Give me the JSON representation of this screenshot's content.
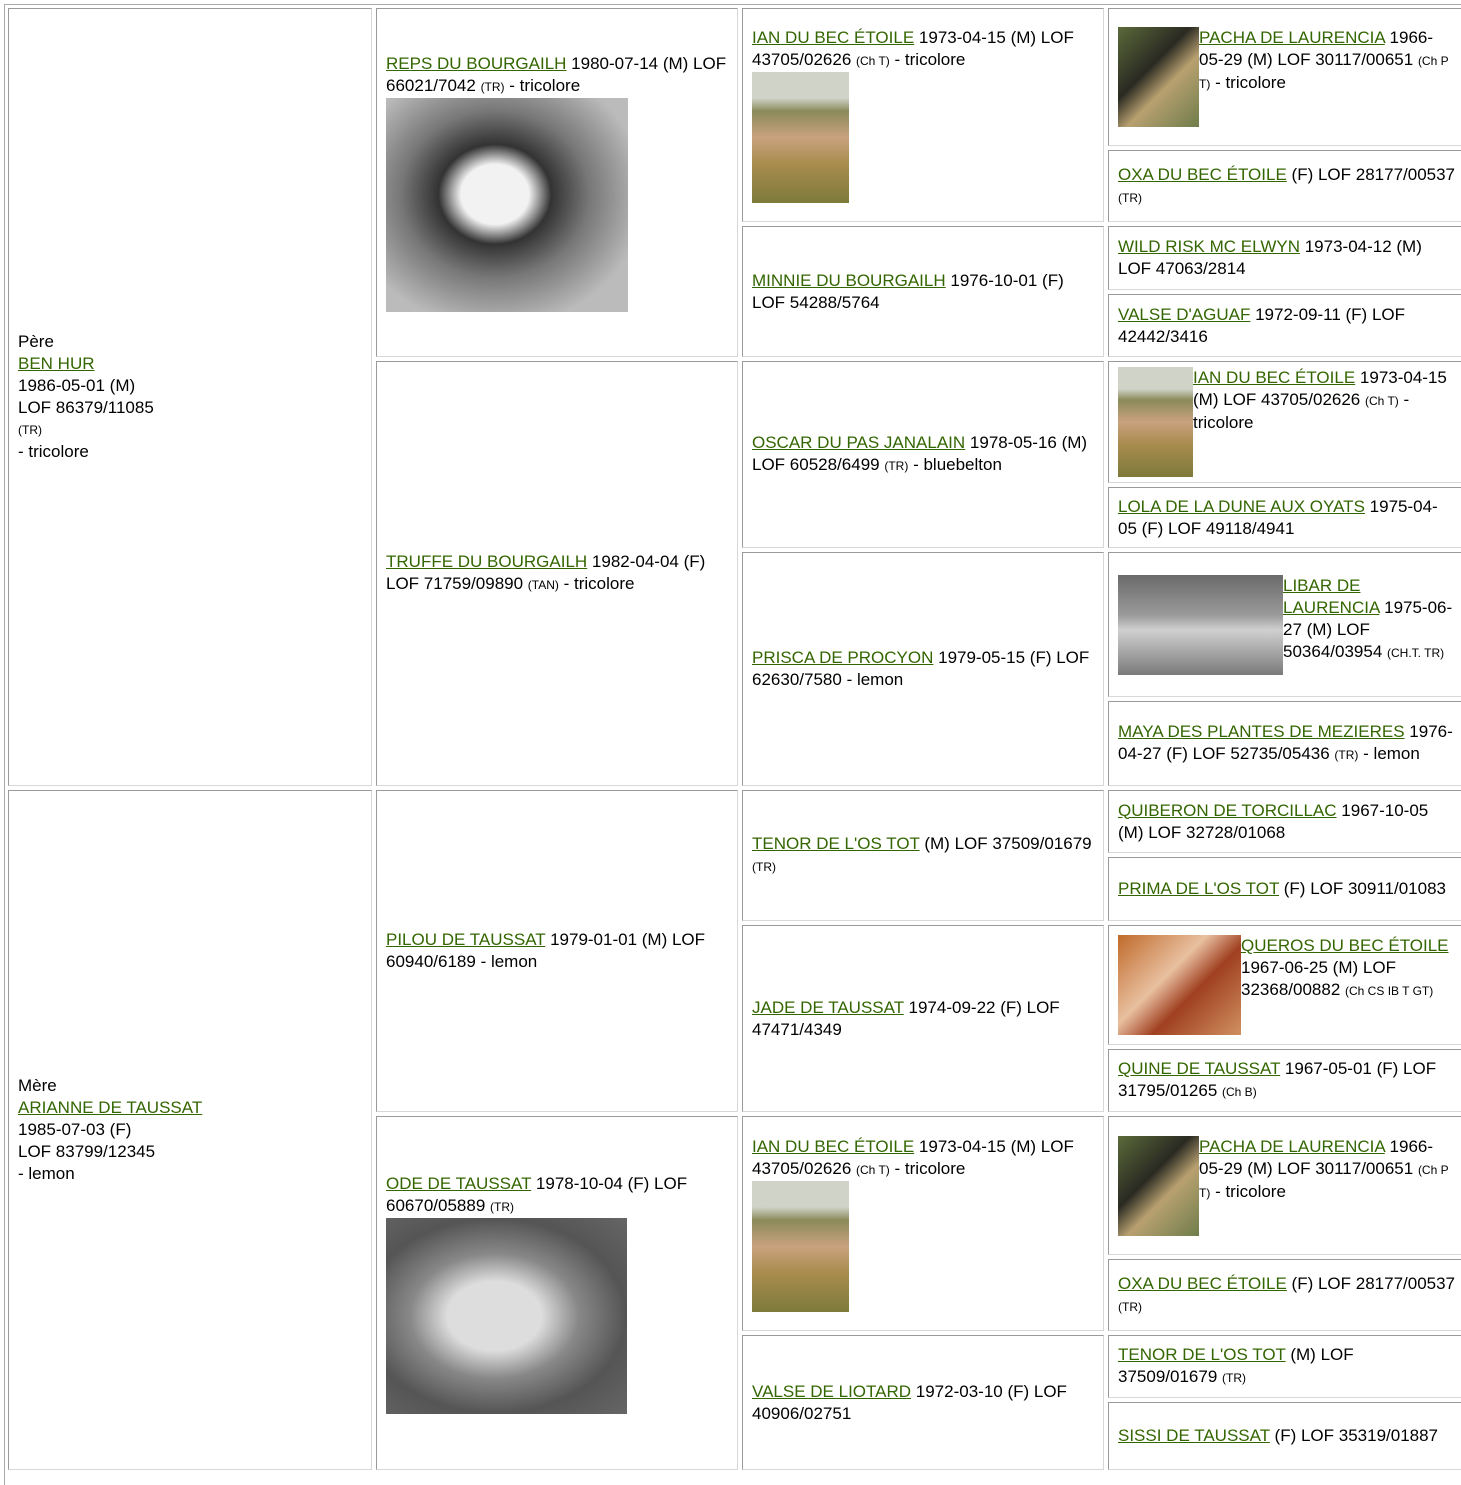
{
  "generation_1": [
    {
      "label": "Père",
      "name": "BEN HUR",
      "birth": "1986-05-01 (M)",
      "registration": "LOF 86379/11085",
      "titles": "(TR)",
      "coat": "- tricolore"
    },
    {
      "label": "Mère",
      "name": "ARIANNE DE TAUSSAT",
      "birth": "1985-07-03 (F)",
      "registration": "LOF 83799/12345",
      "coat": "- lemon"
    }
  ],
  "generation_2": [
    {
      "name": "REPS DU BOURGAILH",
      "info": "1980-07-14 (M) LOF 66021/7042",
      "titles": "(TR)",
      "coat": "- tricolore"
    },
    {
      "name": "TRUFFE DU BOURGAILH",
      "info": "1982-04-04 (F) LOF 71759/09890",
      "titles": "(TAN)",
      "coat": "- tricolore"
    },
    {
      "name": "PILOU DE TAUSSAT",
      "info": "1979-01-01 (M) LOF 60940/6189",
      "coat": "- lemon"
    },
    {
      "name": "ODE DE TAUSSAT",
      "info": "1978-10-04 (F) LOF 60670/05889",
      "titles": "(TR)"
    }
  ],
  "generation_3": [
    {
      "name": "IAN DU BEC ÉTOILE",
      "info": "1973-04-15 (M) LOF 43705/02626",
      "titles": "(Ch T)",
      "coat": "- tricolore"
    },
    {
      "name": "MINNIE DU BOURGAILH",
      "info": "1976-10-01 (F) LOF 54288/5764"
    },
    {
      "name": "OSCAR DU PAS JANALAIN",
      "info": "1978-05-16 (M) LOF 60528/6499",
      "titles": "(TR)",
      "coat": "- bluebelton"
    },
    {
      "name": "PRISCA DE PROCYON",
      "info": "1979-05-15 (F) LOF 62630/7580",
      "coat": "- lemon"
    },
    {
      "name": "TENOR DE L'OS TOT",
      "info": "(M) LOF 37509/01679",
      "titles": "(TR)"
    },
    {
      "name": "JADE DE TAUSSAT",
      "info": "1974-09-22 (F) LOF 47471/4349"
    },
    {
      "name": "IAN DU BEC ÉTOILE",
      "info": "1973-04-15 (M) LOF 43705/02626",
      "titles": "(Ch T)",
      "coat": "- tricolore"
    },
    {
      "name": "VALSE DE LIOTARD",
      "info": "1972-03-10 (F) LOF 40906/02751"
    }
  ],
  "generation_4": [
    {
      "name": "PACHA DE LAURENCIA",
      "info": "1966-05-29 (M) LOF 30117/00651",
      "titles": "(Ch P T)",
      "coat": "- tricolore"
    },
    {
      "name": "OXA DU BEC ÉTOILE",
      "info": "(F) LOF 28177/00537",
      "titles": "(TR)"
    },
    {
      "name": "WILD RISK MC ELWYN",
      "info": "1973-04-12 (M) LOF 47063/2814"
    },
    {
      "name": "VALSE D'AGUAF",
      "info": "1972-09-11 (F) LOF 42442/3416"
    },
    {
      "name": "IAN DU BEC ÉTOILE",
      "info": "1973-04-15 (M) LOF 43705/02626",
      "titles": "(Ch T)",
      "coat": "- tricolore"
    },
    {
      "name": "LOLA DE LA DUNE AUX OYATS",
      "info": "1975-04-05 (F) LOF 49118/4941"
    },
    {
      "name": "LIBAR DE LAURENCIA",
      "info": "1975-06-27 (M) LOF 50364/03954",
      "titles": "(CH.T. TR)"
    },
    {
      "name": "MAYA DES PLANTES DE MEZIERES",
      "info": "1976-04-27 (F) LOF 52735/05436",
      "titles": "(TR)",
      "coat": "- lemon"
    },
    {
      "name": "QUIBERON DE TORCILLAC",
      "info": "1967-10-05 (M) LOF 32728/01068"
    },
    {
      "name": "PRIMA DE L'OS TOT",
      "info": "(F) LOF 30911/01083"
    },
    {
      "name": "QUEROS DU BEC ÉTOILE",
      "info": "1967-06-25 (M) LOF 32368/00882",
      "titles": "(Ch CS IB T GT)"
    },
    {
      "name": "QUINE DE TAUSSAT",
      "info": "1967-05-01 (F) LOF 31795/01265",
      "titles": "(Ch B)"
    },
    {
      "name": "PACHA DE LAURENCIA",
      "info": "1966-05-29 (M) LOF 30117/00651",
      "titles": "(Ch P T)",
      "coat": "- tricolore"
    },
    {
      "name": "OXA DU BEC ÉTOILE",
      "info": "(F) LOF 28177/00537",
      "titles": "(TR)"
    },
    {
      "name": "TENOR DE L'OS TOT",
      "info": "(M) LOF 37509/01679",
      "titles": "(TR)"
    },
    {
      "name": "SISSI DE TAUSSAT",
      "info": "(F) LOF 35319/01887"
    }
  ]
}
